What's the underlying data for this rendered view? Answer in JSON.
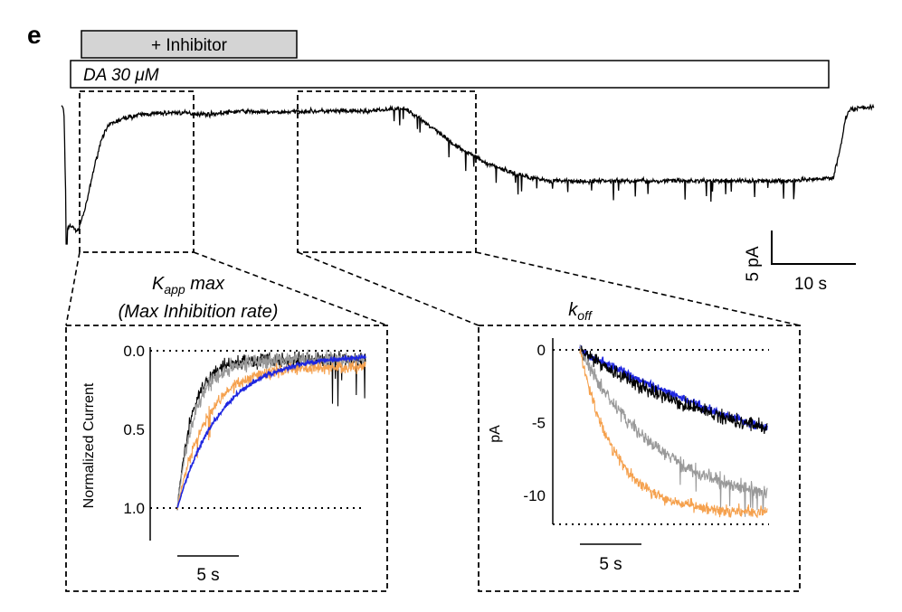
{
  "panel_letter": "e",
  "bars": {
    "inhibitor_label": "+ Inhibitor",
    "da_label_prefix": "DA 30 ",
    "da_label_unit": "μM"
  },
  "scalebar": {
    "y_label": "5 pA",
    "x_label": "10 s"
  },
  "left_panel": {
    "title_main": "K",
    "title_sub": "app",
    "title_rest": " max",
    "subtitle": "(Max Inhibition rate)",
    "ylabel": "Normalized Current",
    "scalebar_label": "5 s"
  },
  "right_panel": {
    "title_main": "k",
    "title_sub": "off",
    "ylabel": "pA",
    "scalebar_label": "5 s"
  },
  "chart_data": [
    {
      "type": "line",
      "name": "trace",
      "xlim": [
        0,
        100
      ],
      "ylim": [
        -22,
        3
      ],
      "series": [
        {
          "color": "#000000",
          "x": [
            0,
            0.3,
            0.6,
            1,
            2,
            3,
            4,
            5,
            6,
            8,
            10,
            14,
            18,
            22,
            26,
            30,
            34,
            38,
            42,
            44,
            46,
            48,
            50,
            52,
            54,
            56,
            58,
            60,
            62,
            64,
            66,
            70,
            75,
            80,
            85,
            90,
            93,
            95,
            96,
            96.5,
            97,
            98,
            99,
            100
          ],
          "y": [
            0,
            -1,
            -20,
            -19,
            -20,
            -16,
            -10,
            -5,
            -3,
            -2,
            -1.5,
            -1.2,
            -1.5,
            -1,
            -1.2,
            -1,
            -1,
            -1,
            -0.5,
            -2,
            -4,
            -6,
            -7.5,
            -9,
            -10,
            -11,
            -11.5,
            -12,
            -12,
            -12.2,
            -12,
            -12,
            -12,
            -12,
            -12,
            -12,
            -11.8,
            -11.5,
            -6,
            -2,
            -0.8,
            -0.5,
            -0.4,
            -0.3
          ]
        }
      ]
    },
    {
      "type": "line",
      "name": "kapp-max",
      "ylim": [
        0.0,
        1.0
      ],
      "yticks": [
        0.0,
        0.5,
        1.0
      ],
      "series": [
        {
          "color": "#000000",
          "tau": 1.2,
          "noise": 0.05,
          "end": 0.06
        },
        {
          "color": "#999999",
          "tau": 1.4,
          "noise": 0.05,
          "end": 0.06
        },
        {
          "color": "#f5a14e",
          "tau": 2.3,
          "noise": 0.04,
          "end": 0.1
        },
        {
          "color": "#1f27e0",
          "tau": 3.5,
          "noise": 0.015,
          "end": 0.03
        }
      ]
    },
    {
      "type": "line",
      "name": "koff",
      "ylim": [
        -12,
        0
      ],
      "yticks": [
        0,
        -5,
        -10
      ],
      "series": [
        {
          "color": "#1f27e0",
          "amp": -12,
          "tau": 25,
          "noise": 0.3
        },
        {
          "color": "#000000",
          "amp": -7.5,
          "tau": 12,
          "noise": 0.5
        },
        {
          "color": "#999999",
          "amp": -11,
          "tau": 6.5,
          "noise": 0.5
        },
        {
          "color": "#f5a14e",
          "amp": -11.2,
          "tau": 2.8,
          "noise": 0.4
        }
      ]
    }
  ]
}
